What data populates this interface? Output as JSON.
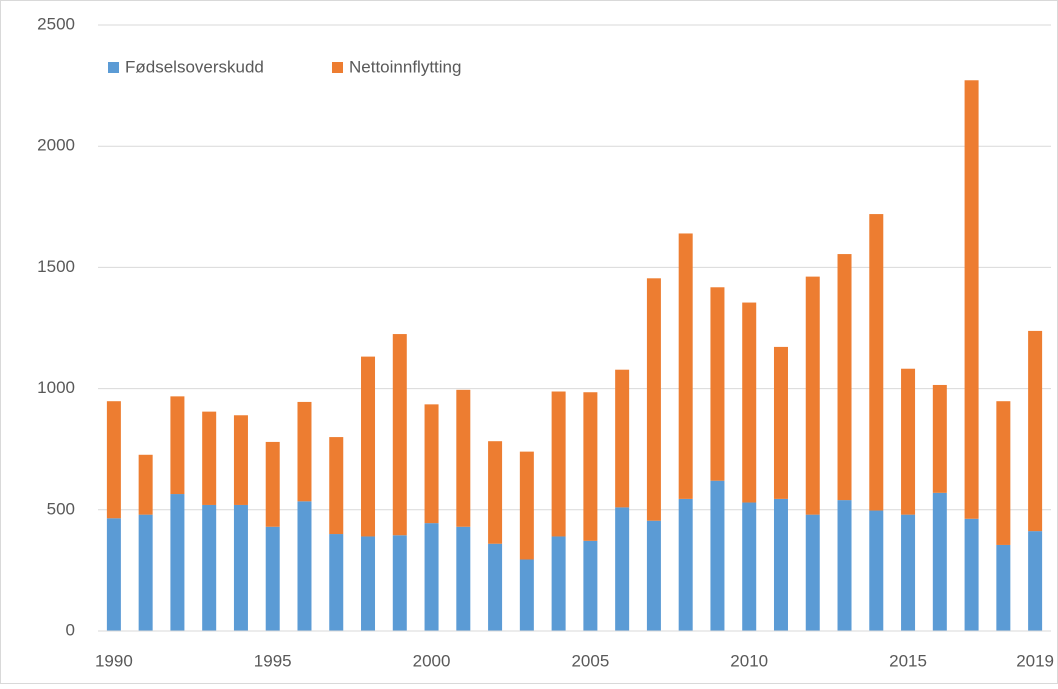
{
  "chart_data": {
    "type": "stacked_bar",
    "categories": [
      "1990",
      null,
      null,
      null,
      null,
      "1995",
      null,
      null,
      null,
      null,
      "2000",
      null,
      null,
      null,
      null,
      "2005",
      null,
      null,
      null,
      null,
      "2010",
      null,
      null,
      null,
      null,
      "2015",
      null,
      null,
      null,
      "2019"
    ],
    "series": [
      {
        "name": "Fødselsoverskudd",
        "color": "#5b9bd5",
        "values": [
          465,
          480,
          565,
          520,
          520,
          430,
          535,
          400,
          390,
          395,
          445,
          430,
          360,
          295,
          390,
          372,
          510,
          455,
          545,
          620,
          530,
          545,
          480,
          540,
          497,
          480,
          570,
          463,
          355,
          412
        ]
      },
      {
        "name": "Nettoinnflytting",
        "color": "#ed7d31",
        "values": [
          483,
          247,
          403,
          385,
          370,
          350,
          410,
          400,
          742,
          830,
          490,
          565,
          423,
          445,
          598,
          613,
          568,
          1000,
          1095,
          798,
          825,
          627,
          982,
          1015,
          1223,
          602,
          445,
          1809,
          593,
          826
        ]
      }
    ],
    "ylim": [
      0,
      2500
    ],
    "yticks": [
      0,
      500,
      1000,
      1500,
      2000,
      2500
    ],
    "grid": true,
    "legend": "top-left"
  }
}
